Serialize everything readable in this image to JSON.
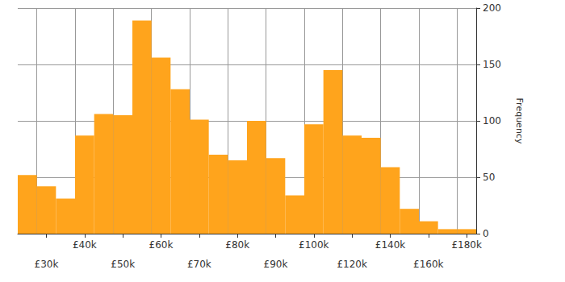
{
  "chart_data": {
    "type": "bar",
    "categories": [
      null,
      "£30k",
      null,
      "£40k",
      null,
      "£50k",
      null,
      "£60k",
      null,
      "£70k",
      null,
      "£80k",
      null,
      "£90k",
      null,
      "£100k",
      null,
      "£120k",
      null,
      "£140k",
      null,
      "£160k",
      null,
      "£180k"
    ],
    "values": [
      52,
      42,
      31,
      87,
      106,
      105,
      189,
      156,
      128,
      101,
      70,
      65,
      100,
      67,
      34,
      97,
      145,
      87,
      85,
      59,
      22,
      11,
      4,
      4
    ],
    "color": "#ffa41c",
    "y_label": "Frequency",
    "ylim": [
      0,
      200
    ],
    "yticks": [
      0,
      50,
      100,
      150,
      200
    ],
    "grid": true
  }
}
